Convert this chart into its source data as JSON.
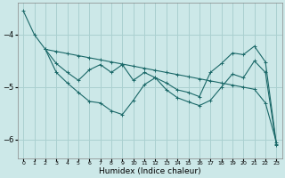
{
  "xlabel": "Humidex (Indice chaleur)",
  "background_color": "#cce8e8",
  "grid_color": "#aad0d0",
  "line_color": "#1a6868",
  "xlim": [
    -0.5,
    23.5
  ],
  "ylim": [
    -6.35,
    -3.4
  ],
  "yticks": [
    -6,
    -5,
    -4
  ],
  "xticks": [
    0,
    1,
    2,
    3,
    4,
    5,
    6,
    7,
    8,
    9,
    10,
    11,
    12,
    13,
    14,
    15,
    16,
    17,
    18,
    19,
    20,
    21,
    22,
    23
  ],
  "line1_x": [
    0,
    1,
    2,
    3,
    4,
    5,
    6,
    7,
    8,
    9,
    10,
    11,
    12,
    13,
    14,
    15,
    16,
    17,
    18,
    19,
    20,
    21,
    22,
    23
  ],
  "line1_y": [
    -3.55,
    -4.0,
    -4.28,
    -4.32,
    -4.36,
    -4.4,
    -4.44,
    -4.48,
    -4.52,
    -4.56,
    -4.6,
    -4.64,
    -4.68,
    -4.72,
    -4.76,
    -4.8,
    -4.84,
    -4.88,
    -4.92,
    -4.96,
    -5.0,
    -5.04,
    -5.3,
    -6.05
  ],
  "line2_x": [
    2,
    3,
    4,
    5,
    6,
    7,
    8,
    9,
    10,
    11,
    12,
    13,
    14,
    15,
    16,
    17,
    18,
    19,
    20,
    21,
    22,
    23
  ],
  "line2_y": [
    -4.28,
    -4.55,
    -4.72,
    -4.87,
    -4.67,
    -4.57,
    -4.72,
    -4.57,
    -4.87,
    -4.72,
    -4.82,
    -4.92,
    -5.05,
    -5.1,
    -5.18,
    -4.72,
    -4.55,
    -4.35,
    -4.38,
    -4.22,
    -4.52,
    -6.08
  ],
  "line3_x": [
    2,
    3,
    4,
    5,
    6,
    7,
    8,
    9,
    10,
    11,
    12,
    13,
    14,
    15,
    16,
    17,
    18,
    19,
    20,
    21,
    22,
    23
  ],
  "line3_y": [
    -4.28,
    -4.72,
    -4.92,
    -5.1,
    -5.27,
    -5.3,
    -5.45,
    -5.52,
    -5.25,
    -4.95,
    -4.82,
    -5.05,
    -5.2,
    -5.28,
    -5.35,
    -5.25,
    -5.0,
    -4.75,
    -4.82,
    -4.5,
    -4.72,
    -6.1
  ]
}
